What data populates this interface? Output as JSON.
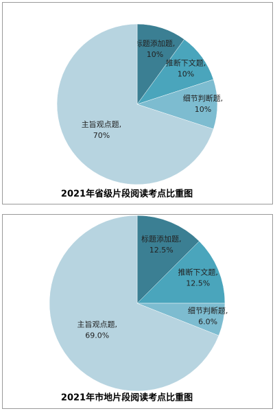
{
  "chart_data": [
    {
      "type": "pie",
      "title": "2021年省级片段阅读考点比重图",
      "categories": [
        "标题添加题,",
        "推断下文题,",
        "细节判断题,",
        "主旨观点题,"
      ],
      "values": [
        10,
        10,
        10,
        70
      ],
      "value_labels": [
        "10%",
        "10%",
        "10%",
        "70%"
      ],
      "colors": [
        "#3b7f93",
        "#4aa5bc",
        "#7dbcd0",
        "#b7d4e0"
      ]
    },
    {
      "type": "pie",
      "title": "2021年市地片段阅读考点比重图",
      "categories": [
        "标题添加题,",
        "推断下文题,",
        "细节判断题,",
        "主旨观点题,"
      ],
      "values": [
        12.5,
        12.5,
        6.0,
        69.0
      ],
      "value_labels": [
        "12.5%",
        "12.5%",
        "6.0%",
        "69.0%"
      ],
      "colors": [
        "#3b7f93",
        "#4aa5bc",
        "#7dbcd0",
        "#b7d4e0"
      ]
    }
  ]
}
